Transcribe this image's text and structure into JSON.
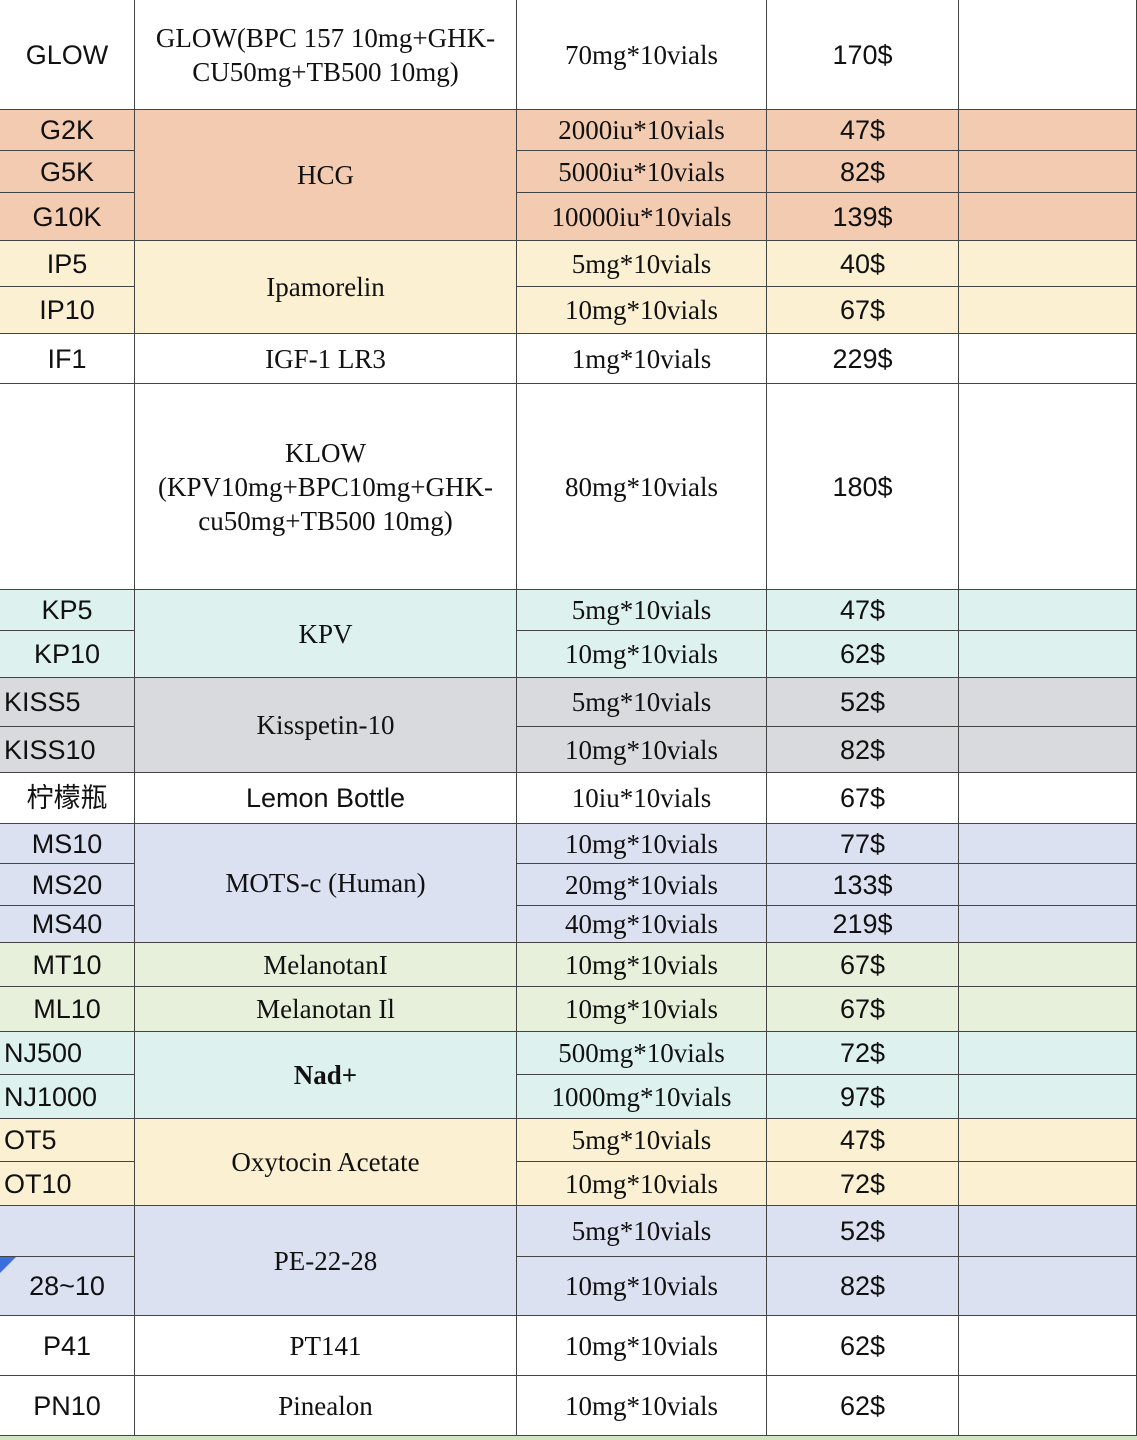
{
  "table": {
    "groups": [
      {
        "name": "GLOW(BPC 157 10mg+GHK-CU50mg+TB500 10mg)",
        "color": "#ffffff",
        "rows": [
          {
            "code": "GLOW",
            "spec": "70mg*10vials",
            "price": "170$"
          }
        ]
      },
      {
        "name": "HCG",
        "color": "#f2cbb1",
        "rows": [
          {
            "code": "G2K",
            "spec": "2000iu*10vials",
            "price": "47$"
          },
          {
            "code": "G5K",
            "spec": "5000iu*10vials",
            "price": "82$"
          },
          {
            "code": "G10K",
            "spec": "10000iu*10vials",
            "price": "139$"
          }
        ]
      },
      {
        "name": "Ipamorelin",
        "color": "#fbf0d1",
        "rows": [
          {
            "code": "IP5",
            "spec": "5mg*10vials",
            "price": "40$"
          },
          {
            "code": "IP10",
            "spec": "10mg*10vials",
            "price": "67$"
          }
        ]
      },
      {
        "name": "IGF-1 LR3",
        "color": "#ffffff",
        "rows": [
          {
            "code": "IF1",
            "spec": "1mg*10vials",
            "price": "229$"
          }
        ]
      },
      {
        "name": "KLOW (KPV10mg+BPC10mg+GHK-cu50mg+TB500 10mg)",
        "color": "#ffffff",
        "rows": [
          {
            "code": null,
            "spec": "80mg*10vials",
            "price": "180$"
          }
        ]
      },
      {
        "name": "KPV",
        "color": "#ddf1ef",
        "rows": [
          {
            "code": "KP5",
            "spec": "5mg*10vials",
            "price": "47$"
          },
          {
            "code": "KP10",
            "spec": "10mg*10vials",
            "price": "62$"
          }
        ]
      },
      {
        "name": "Kisspetin-10",
        "color": "#d9dadd",
        "rows": [
          {
            "code": "KISS5",
            "spec": "5mg*10vials",
            "price": "52$"
          },
          {
            "code": "KISS10",
            "spec": "10mg*10vials",
            "price": "82$"
          }
        ]
      },
      {
        "name": "Lemon Bottle",
        "color": "#ffffff",
        "rows": [
          {
            "code": "柠檬瓶",
            "spec": "10iu*10vials",
            "price": "67$"
          }
        ]
      },
      {
        "name": "MOTS-c (Human)",
        "color": "#dce1f2",
        "rows": [
          {
            "code": "MS10",
            "spec": "10mg*10vials",
            "price": "77$"
          },
          {
            "code": "MS20",
            "spec": "20mg*10vials",
            "price": "133$"
          },
          {
            "code": "MS40",
            "spec": "40mg*10vials",
            "price": "219$"
          }
        ]
      },
      {
        "name": "MelanotanI",
        "color": "#e6f0da",
        "rows": [
          {
            "code": "MT10",
            "spec": "10mg*10vials",
            "price": "67$"
          }
        ]
      },
      {
        "name": "Melanotan Il",
        "color": "#e6f0da",
        "rows": [
          {
            "code": "ML10",
            "spec": "10mg*10vials",
            "price": "67$"
          }
        ]
      },
      {
        "name": "Nad+",
        "color": "#ddf1ef",
        "rows": [
          {
            "code": "NJ500",
            "spec": "500mg*10vials",
            "price": "72$"
          },
          {
            "code": "NJ1000",
            "spec": "1000mg*10vials",
            "price": "97$"
          }
        ]
      },
      {
        "name": "Oxytocin Acetate",
        "color": "#fbf0d1",
        "rows": [
          {
            "code": "OT5",
            "spec": "5mg*10vials",
            "price": "47$"
          },
          {
            "code": "OT10",
            "spec": "10mg*10vials",
            "price": "72$"
          }
        ]
      },
      {
        "name": "PE-22-28",
        "color": "#dce1f2",
        "rows": [
          {
            "code": null,
            "spec": "5mg*10vials",
            "price": "52$"
          },
          {
            "code": "28~10",
            "spec": "10mg*10vials",
            "price": "82$"
          }
        ]
      },
      {
        "name": "PT141",
        "color": "#ffffff",
        "rows": [
          {
            "code": "P41",
            "spec": "10mg*10vials",
            "price": "62$"
          }
        ]
      },
      {
        "name": "Pinealon",
        "color": "#ffffff",
        "rows": [
          {
            "code": "PN10",
            "spec": "10mg*10vials",
            "price": "62$"
          }
        ]
      }
    ]
  }
}
